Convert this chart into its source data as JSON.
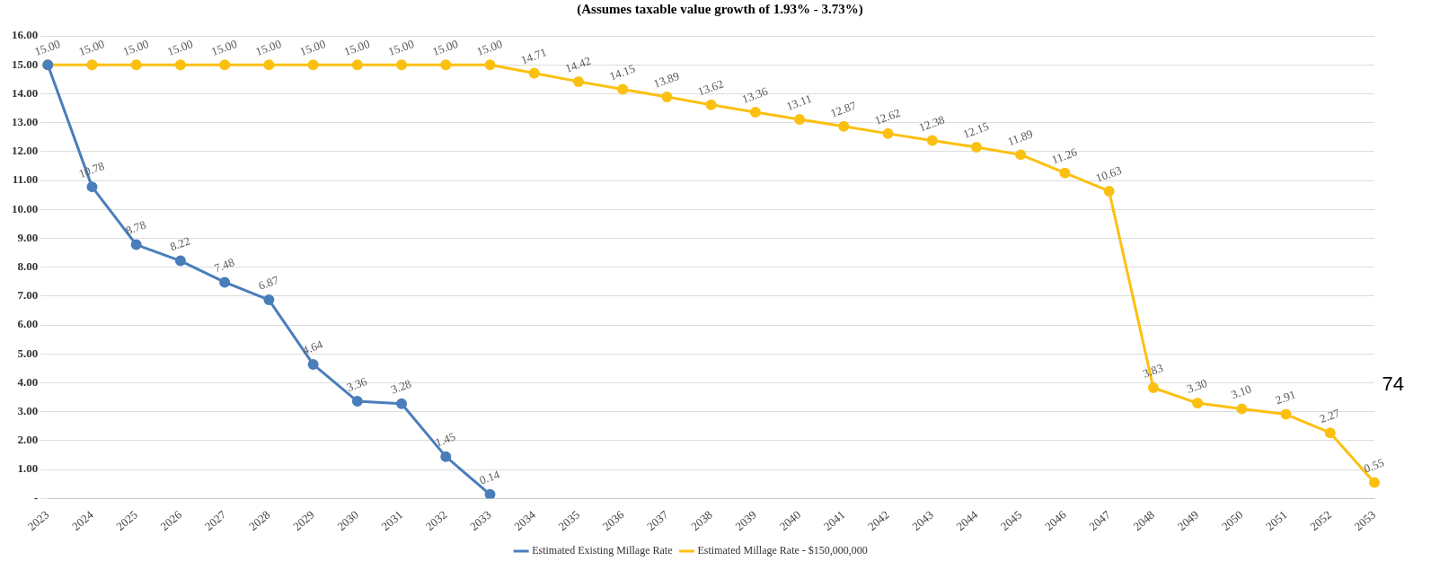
{
  "chart_data": {
    "type": "line",
    "title": "(Assumes taxable value growth of 1.93% - 3.73%)",
    "categories": [
      "2023",
      "2024",
      "2025",
      "2026",
      "2027",
      "2028",
      "2029",
      "2030",
      "2031",
      "2032",
      "2033",
      "2034",
      "2035",
      "2036",
      "2037",
      "2038",
      "2039",
      "2040",
      "2041",
      "2042",
      "2043",
      "2044",
      "2045",
      "2046",
      "2047",
      "2048",
      "2049",
      "2050",
      "2051",
      "2052",
      "2053"
    ],
    "series": [
      {
        "name": "Estimated Existing Millage Rate",
        "color": "#4a7ebb",
        "values": [
          15,
          10.78,
          8.78,
          8.22,
          7.48,
          6.87,
          4.64,
          3.36,
          3.28,
          1.45,
          0.14,
          null,
          null,
          null,
          null,
          null,
          null,
          null,
          null,
          null,
          null,
          null,
          null,
          null,
          null,
          null,
          null,
          null,
          null,
          null,
          null
        ],
        "value_labels": [
          null,
          "10.78",
          "8.78",
          "8.22",
          "7.48",
          "6.87",
          "4.64",
          "3.36",
          "3.28",
          "1.45",
          "0.14",
          null,
          null,
          null,
          null,
          null,
          null,
          null,
          null,
          null,
          null,
          null,
          null,
          null,
          null,
          null,
          null,
          null,
          null,
          null,
          null
        ]
      },
      {
        "name": "Estimated Millage Rate - $150,000,000",
        "color": "#fbc010",
        "values": [
          15,
          15,
          15,
          15,
          15,
          15,
          15,
          15,
          15,
          15,
          15,
          14.71,
          14.42,
          14.15,
          13.89,
          13.62,
          13.36,
          13.11,
          12.87,
          12.62,
          12.38,
          12.15,
          11.89,
          11.26,
          10.63,
          3.83,
          3.3,
          3.1,
          2.91,
          2.27,
          0.55
        ],
        "value_labels": [
          "15.00",
          "15.00",
          "15.00",
          "15.00",
          "15.00",
          "15.00",
          "15.00",
          "15.00",
          "15.00",
          "15.00",
          "15.00",
          "14.71",
          "14.42",
          "14.15",
          "13.89",
          "13.62",
          "13.36",
          "13.11",
          "12.87",
          "12.62",
          "12.38",
          "12.15",
          "11.89",
          "11.26",
          "10.63",
          "3.83",
          "3.30",
          "3.10",
          "2.91",
          "2.27",
          "0.55"
        ]
      }
    ],
    "ylim": [
      0,
      16
    ],
    "yticks": [
      {
        "value": 0,
        "label": "-"
      },
      {
        "value": 1,
        "label": "1.00"
      },
      {
        "value": 2,
        "label": "2.00"
      },
      {
        "value": 3,
        "label": "3.00"
      },
      {
        "value": 4,
        "label": "4.00"
      },
      {
        "value": 5,
        "label": "5.00"
      },
      {
        "value": 6,
        "label": "6.00"
      },
      {
        "value": 7,
        "label": "7.00"
      },
      {
        "value": 8,
        "label": "8.00"
      },
      {
        "value": 9,
        "label": "9.00"
      },
      {
        "value": 10,
        "label": "10.00"
      },
      {
        "value": 11,
        "label": "11.00"
      },
      {
        "value": 12,
        "label": "12.00"
      },
      {
        "value": 13,
        "label": "13.00"
      },
      {
        "value": 14,
        "label": "14.00"
      },
      {
        "value": 15,
        "label": "15.00"
      },
      {
        "value": 16,
        "label": "16.00"
      }
    ],
    "grid": "y",
    "legend": "bottom",
    "marker": "circle",
    "line_style": "solid",
    "annotations": [
      "74"
    ]
  }
}
